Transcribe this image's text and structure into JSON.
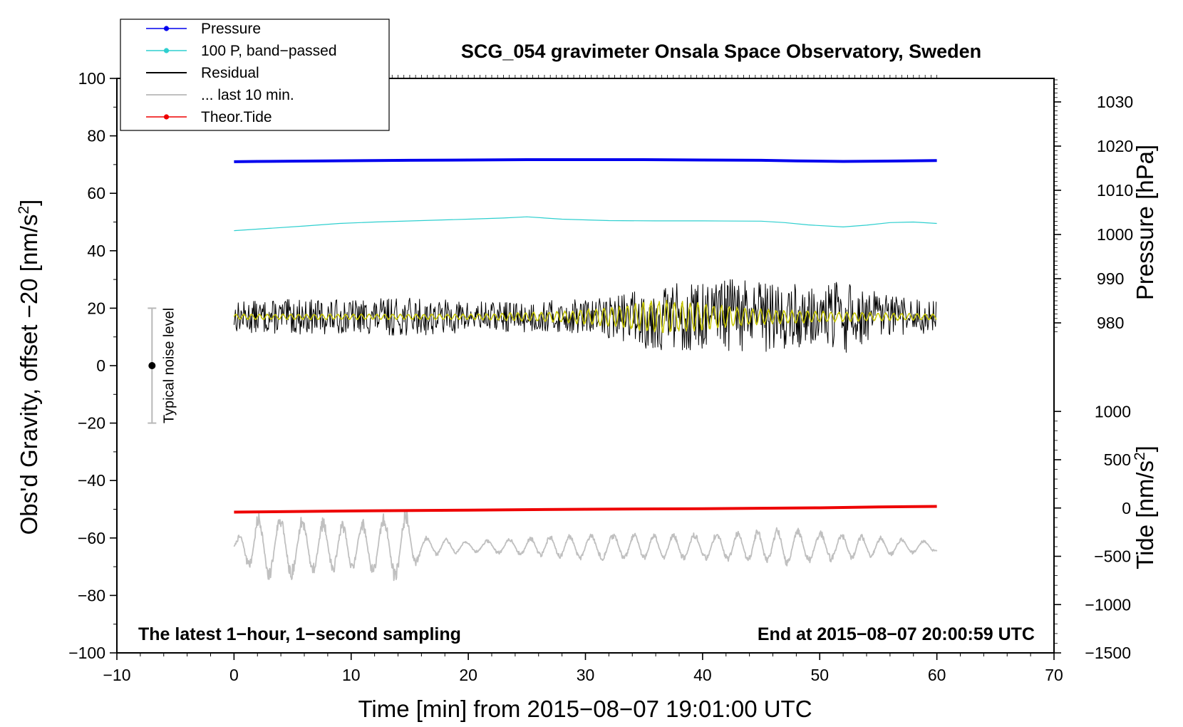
{
  "chart_data": {
    "type": "line",
    "title": "SCG_054 gravimeter Onsala Space Observatory, Sweden",
    "xlabel": "Time [min] from 2015−08−07 19:01:00 UTC",
    "ylabel": "Obs'd Gravity, offset −20 [nm/s",
    "ylabel_sup": "2",
    "ylabel_close": "]",
    "y2_pressure_label": "Pressure [hPa]",
    "y2_tide_label": "Tide [nm/s",
    "y2_tide_sup": "2",
    "y2_tide_close": "]",
    "xlim": [
      -10,
      70
    ],
    "ylim": [
      -100,
      100
    ],
    "x_ticks": [
      -10,
      0,
      10,
      20,
      30,
      40,
      50,
      60,
      70
    ],
    "y_ticks": [
      -100,
      -80,
      -60,
      -40,
      -20,
      0,
      20,
      40,
      60,
      80,
      100
    ],
    "pressure_axis": {
      "range": [
        980,
        1030
      ],
      "ticks": [
        980,
        990,
        1000,
        1010,
        1020,
        1030
      ]
    },
    "tide_axis": {
      "range": [
        -1500,
        1000
      ],
      "ticks": [
        -1500,
        -1000,
        -500,
        0,
        500,
        1000
      ]
    },
    "tick_label_texts": {
      "x": [
        "−10",
        "0",
        "10",
        "20",
        "30",
        "40",
        "50",
        "60",
        "70"
      ],
      "y": [
        "−100",
        "−80",
        "−60",
        "−40",
        "−20",
        "0",
        "20",
        "40",
        "60",
        "80",
        "100"
      ],
      "pressure": [
        "980",
        "990",
        "1000",
        "1010",
        "1020",
        "1030"
      ],
      "tide": [
        "−1500",
        "−1000",
        "−500",
        "0",
        "500",
        "1000"
      ]
    },
    "legend": [
      {
        "label": "Pressure",
        "color": "#0000ee",
        "marker": "dot"
      },
      {
        "label": "100 P, band−passed",
        "color": "#2ecfcf",
        "marker": "dot"
      },
      {
        "label": "Residual",
        "color": "#000000",
        "marker": "none"
      },
      {
        "label": "... last 10 min.",
        "color": "#c0c0c0",
        "marker": "none"
      },
      {
        "label": "Theor.Tide",
        "color": "#ee0000",
        "marker": "dot"
      }
    ],
    "annotations": {
      "bottom_left": "The latest 1−hour, 1−second sampling",
      "bottom_right": "End at 2015−08−07 20:00:59 UTC"
    },
    "noise_bar": {
      "x": -7,
      "center": 0,
      "low": -20,
      "high": 20,
      "label": "Typical noise level"
    },
    "series": [
      {
        "name": "Pressure",
        "color": "#0000ee",
        "x": [
          0,
          2,
          5,
          8,
          12,
          15,
          20,
          25,
          30,
          35,
          40,
          45,
          48,
          52,
          55,
          60
        ],
        "y": [
          71.0,
          71.1,
          71.2,
          71.3,
          71.4,
          71.5,
          71.6,
          71.7,
          71.7,
          71.7,
          71.6,
          71.5,
          71.3,
          71.1,
          71.2,
          71.4
        ]
      },
      {
        "name": "100 P, band−passed",
        "color": "#2ecfcf",
        "x": [
          0,
          3,
          6,
          9,
          12,
          16,
          20,
          23,
          25,
          28,
          32,
          36,
          40,
          45,
          47,
          49,
          52,
          54,
          56,
          58,
          60
        ],
        "y": [
          47,
          47.8,
          48.6,
          49.5,
          50.0,
          50.5,
          51.0,
          51.4,
          51.8,
          51.0,
          50.5,
          50.4,
          50.4,
          50.3,
          49.8,
          49.0,
          48.3,
          48.9,
          49.8,
          50.0,
          49.5
        ]
      },
      {
        "name": "Theor.Tide",
        "color": "#ee0000",
        "x": [
          0,
          10,
          20,
          30,
          40,
          50,
          55,
          60
        ],
        "y": [
          -51,
          -50.6,
          -50.3,
          -50.0,
          -49.8,
          -49.5,
          -49.2,
          -49.0
        ]
      },
      {
        "name": "Residual",
        "color": "#000000",
        "x_range": [
          0,
          60
        ],
        "center": 17,
        "envelope_x": [
          0,
          5,
          10,
          15,
          20,
          25,
          30,
          33,
          36,
          39,
          41,
          42,
          44,
          47,
          50,
          52,
          54,
          57,
          60
        ],
        "envelope_amp": [
          4,
          4.5,
          4.5,
          5,
          4,
          4,
          4.5,
          6,
          9,
          9,
          8,
          12,
          9,
          9,
          7,
          10,
          7,
          5,
          4
        ]
      },
      {
        "name": "Residual (smoothed)",
        "color": "#c8c800",
        "x_range": [
          0,
          60
        ],
        "center": 17,
        "envelope_x": [
          0,
          10,
          20,
          28,
          33,
          36,
          40,
          44,
          50,
          55,
          60
        ],
        "envelope_amp": [
          1,
          1,
          1,
          2,
          4,
          6,
          5,
          3,
          2,
          1.5,
          1
        ]
      },
      {
        "name": "... last 10 min.",
        "color": "#c0c0c0",
        "x_range": [
          0,
          60
        ],
        "center": -63,
        "envelope_x": [
          0,
          2,
          4,
          6,
          10,
          13,
          14.6,
          16,
          20,
          30,
          40,
          47,
          52,
          57,
          60
        ],
        "envelope_amp": [
          2,
          12,
          12,
          11,
          9,
          12,
          14,
          4,
          2,
          5,
          5,
          7,
          5,
          3,
          2
        ]
      }
    ]
  }
}
